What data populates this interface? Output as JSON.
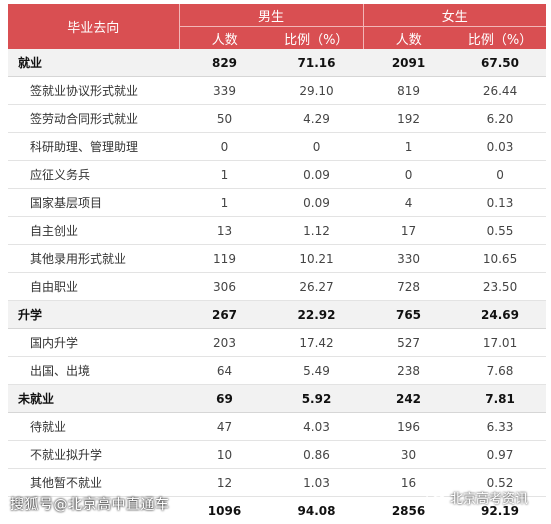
{
  "header": {
    "direction": "毕业去向",
    "male": "男生",
    "female": "女生",
    "count": "人数",
    "ratio": "比例（%）"
  },
  "rows": [
    {
      "name": "就业",
      "type": "cat",
      "m_n": "829",
      "m_p": "71.16",
      "f_n": "2091",
      "f_p": "67.50"
    },
    {
      "name": "签就业协议形式就业",
      "type": "sub",
      "m_n": "339",
      "m_p": "29.10",
      "f_n": "819",
      "f_p": "26.44"
    },
    {
      "name": "签劳动合同形式就业",
      "type": "sub",
      "m_n": "50",
      "m_p": "4.29",
      "f_n": "192",
      "f_p": "6.20"
    },
    {
      "name": "科研助理、管理助理",
      "type": "sub",
      "m_n": "0",
      "m_p": "0",
      "f_n": "1",
      "f_p": "0.03"
    },
    {
      "name": "应征义务兵",
      "type": "sub",
      "m_n": "1",
      "m_p": "0.09",
      "f_n": "0",
      "f_p": "0"
    },
    {
      "name": "国家基层项目",
      "type": "sub",
      "m_n": "1",
      "m_p": "0.09",
      "f_n": "4",
      "f_p": "0.13"
    },
    {
      "name": "自主创业",
      "type": "sub",
      "m_n": "13",
      "m_p": "1.12",
      "f_n": "17",
      "f_p": "0.55"
    },
    {
      "name": "其他录用形式就业",
      "type": "sub",
      "m_n": "119",
      "m_p": "10.21",
      "f_n": "330",
      "f_p": "10.65"
    },
    {
      "name": "自由职业",
      "type": "sub",
      "m_n": "306",
      "m_p": "26.27",
      "f_n": "728",
      "f_p": "23.50"
    },
    {
      "name": "升学",
      "type": "cat",
      "m_n": "267",
      "m_p": "22.92",
      "f_n": "765",
      "f_p": "24.69"
    },
    {
      "name": "国内升学",
      "type": "sub",
      "m_n": "203",
      "m_p": "17.42",
      "f_n": "527",
      "f_p": "17.01"
    },
    {
      "name": "出国、出境",
      "type": "sub",
      "m_n": "64",
      "m_p": "5.49",
      "f_n": "238",
      "f_p": "7.68"
    },
    {
      "name": "未就业",
      "type": "cat",
      "m_n": "69",
      "m_p": "5.92",
      "f_n": "242",
      "f_p": "7.81"
    },
    {
      "name": "待就业",
      "type": "sub",
      "m_n": "47",
      "m_p": "4.03",
      "f_n": "196",
      "f_p": "6.33"
    },
    {
      "name": "不就业拟升学",
      "type": "sub",
      "m_n": "10",
      "m_p": "0.86",
      "f_n": "30",
      "f_p": "0.97"
    },
    {
      "name": "其他暂不就业",
      "type": "sub",
      "m_n": "12",
      "m_p": "1.03",
      "f_n": "16",
      "f_p": "0.52"
    },
    {
      "name": "",
      "type": "total",
      "m_n": "1096",
      "m_p": "94.08",
      "f_n": "2856",
      "f_p": "92.19"
    }
  ],
  "watermark_left": "搜狐号@北京高中直通车",
  "watermark_right": "北京高考资讯",
  "colors": {
    "header_bg": "#d94f52",
    "category_bg": "#f2f2f2"
  }
}
